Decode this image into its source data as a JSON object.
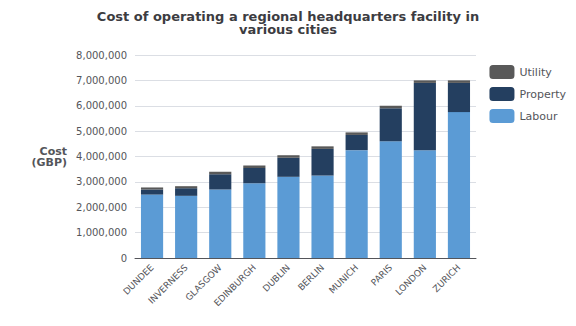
{
  "chart_data": {
    "type": "bar",
    "title": "Cost of operating a regional headquarters facility in\nvarious cities",
    "y_label": "Cost\n(GBP)",
    "categories": [
      "DUNDEE",
      "INVERNESS",
      "GLASGOW",
      "EDINBURGH",
      "DUBLIN",
      "BERLIN",
      "MUNICH",
      "PARIS",
      "LONDON",
      "ZURICH"
    ],
    "series": [
      {
        "name": "Labour",
        "color": "#5b9bd5",
        "values": [
          2500000,
          2450000,
          2700000,
          2950000,
          3200000,
          3250000,
          4250000,
          4600000,
          4250000,
          5750000
        ]
      },
      {
        "name": "Property",
        "color": "#243f60",
        "values": [
          200000,
          300000,
          600000,
          600000,
          750000,
          1050000,
          600000,
          1300000,
          2650000,
          1150000
        ]
      },
      {
        "name": "Utility",
        "color": "#595959",
        "values": [
          80000,
          80000,
          100000,
          100000,
          100000,
          100000,
          100000,
          100000,
          100000,
          100000
        ]
      }
    ],
    "stacked": true,
    "ylim": [
      0,
      8000000
    ],
    "yticks": [
      0,
      {
        "value": 1000000,
        "label": "1,000,000"
      },
      {
        "value": 2000000,
        "label": "2,000,000"
      },
      {
        "value": 3000000,
        "label": "3,000,000"
      },
      {
        "value": 4000000,
        "label": "4,000,000"
      },
      {
        "value": 5000000,
        "label": "5,000,000"
      },
      {
        "value": 6000000,
        "label": "6,000,000"
      },
      {
        "value": 7000000,
        "label": "7,000,000"
      },
      {
        "value": 8000000,
        "label": "8,000,000"
      }
    ],
    "grid": true,
    "legend": "upper right"
  }
}
